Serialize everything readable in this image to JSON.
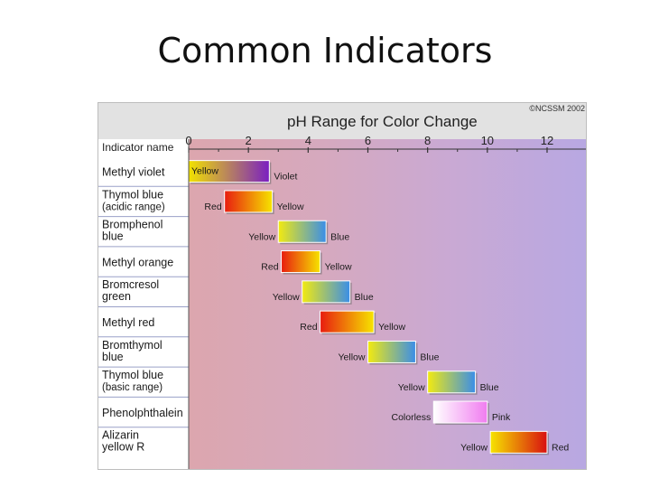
{
  "slide": {
    "title": "Common Indicators"
  },
  "chart_data": {
    "type": "range-bar",
    "title": "pH Range for Color Change",
    "copyright": "©NCSSM 2002",
    "row_header": "Indicator name",
    "x_ticks": [
      "0",
      "2",
      "4",
      "6",
      "8",
      "10",
      "12"
    ],
    "xlim": [
      0,
      13.3
    ],
    "indicators": [
      {
        "name": [
          "Methyl violet"
        ],
        "range": [
          0.0,
          2.7
        ],
        "low_label": "Yellow",
        "high_label": "Violet",
        "low_color": "#f2e200",
        "high_color": "#7a1fc2"
      },
      {
        "name": [
          "Thymol blue",
          "(acidic range)"
        ],
        "range": [
          1.2,
          2.8
        ],
        "low_label": "Red",
        "high_label": "Yellow",
        "low_color": "#e81c10",
        "high_color": "#f6e400"
      },
      {
        "name": [
          "Bromphenol",
          "blue"
        ],
        "range": [
          3.0,
          4.6
        ],
        "low_label": "Yellow",
        "high_label": "Blue",
        "low_color": "#f2ea10",
        "high_color": "#3a8ee8"
      },
      {
        "name": [
          "Methyl orange"
        ],
        "range": [
          3.1,
          4.4
        ],
        "low_label": "Red",
        "high_label": "Yellow",
        "low_color": "#e81c10",
        "high_color": "#f6e400"
      },
      {
        "name": [
          "Bromcresol",
          "green"
        ],
        "range": [
          3.8,
          5.4
        ],
        "low_label": "Yellow",
        "high_label": "Blue",
        "low_color": "#f2ea10",
        "high_color": "#3a8ee8"
      },
      {
        "name": [
          "Methyl red"
        ],
        "range": [
          4.4,
          6.2
        ],
        "low_label": "Red",
        "high_label": "Yellow",
        "low_color": "#e81c10",
        "high_color": "#f6e400"
      },
      {
        "name": [
          "Bromthymol",
          "blue"
        ],
        "range": [
          6.0,
          7.6
        ],
        "low_label": "Yellow",
        "high_label": "Blue",
        "low_color": "#f2ea10",
        "high_color": "#3a8ee8"
      },
      {
        "name": [
          "Thymol blue",
          "(basic range)"
        ],
        "range": [
          8.0,
          9.6
        ],
        "low_label": "Yellow",
        "high_label": "Blue",
        "low_color": "#f2ea10",
        "high_color": "#3a8ee8"
      },
      {
        "name": [
          "Phenolphthalein"
        ],
        "range": [
          8.2,
          10.0
        ],
        "low_label": "Colorless",
        "high_label": "Pink",
        "low_color": "#ffffff",
        "high_color": "#f07cf0"
      },
      {
        "name": [
          "Alizarin",
          "yellow R"
        ],
        "range": [
          10.1,
          12.0
        ],
        "low_label": "Yellow",
        "high_label": "Red",
        "low_color": "#f6e400",
        "high_color": "#d81010"
      }
    ],
    "background_gradient": [
      "#dca6ae",
      "#d6a9be",
      "#c9a9d4",
      "#b8a8e2"
    ],
    "header_color": "#e2e2e2",
    "border_color": "#2f3a86"
  }
}
